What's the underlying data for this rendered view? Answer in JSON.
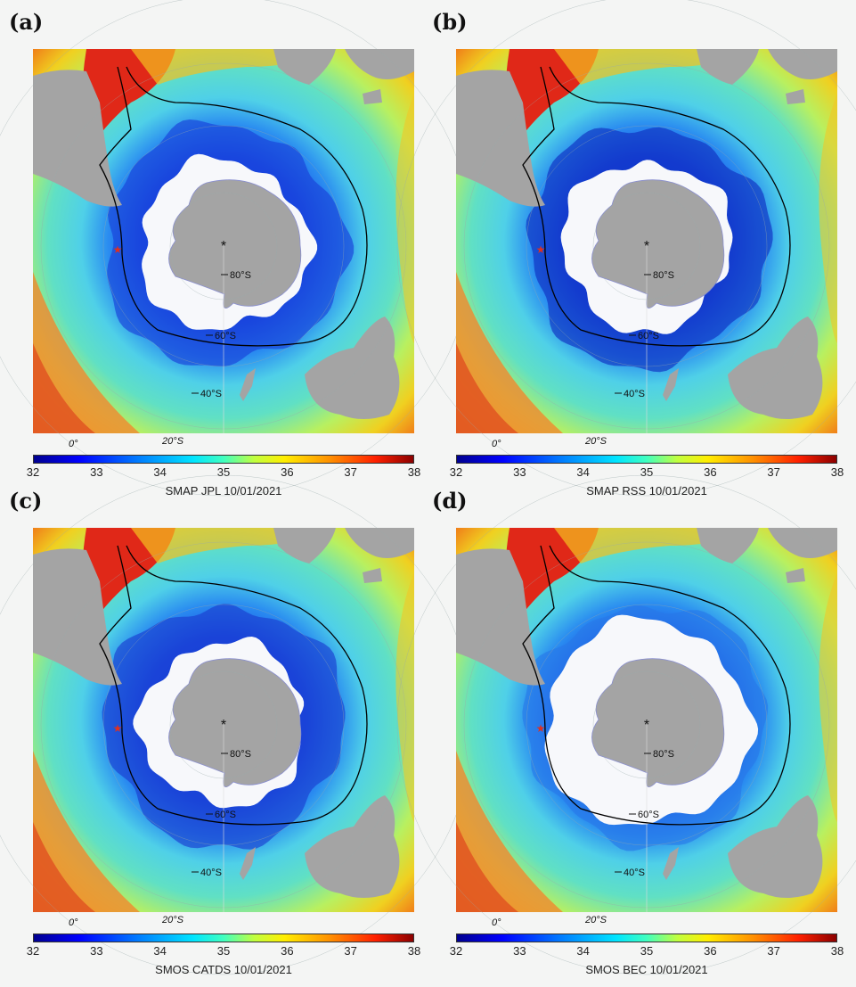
{
  "colorbar": {
    "ticks": [
      "32",
      "33",
      "34",
      "35",
      "36",
      "37",
      "38"
    ],
    "min": 32,
    "max": 38
  },
  "labels": {
    "lat_80": "80°S",
    "lat_60": "60°S",
    "lat_40": "40°S",
    "lon_0": "0°",
    "lon_20": "20°S",
    "pole": "*"
  },
  "panels": [
    {
      "letter": "(a)",
      "title": "SMAP JPL 10/01/2021"
    },
    {
      "letter": "(b)",
      "title": "SMAP RSS 10/01/2021"
    },
    {
      "letter": "(c)",
      "title": "SMOS CATDS 10/01/2021"
    },
    {
      "letter": "(d)",
      "title": "SMOS BEC 10/01/2021"
    }
  ],
  "colors": {
    "land": "#a4a4a4",
    "ice": "#f7f8fb",
    "front_line": "#000000",
    "marker": "#e0301e"
  }
}
